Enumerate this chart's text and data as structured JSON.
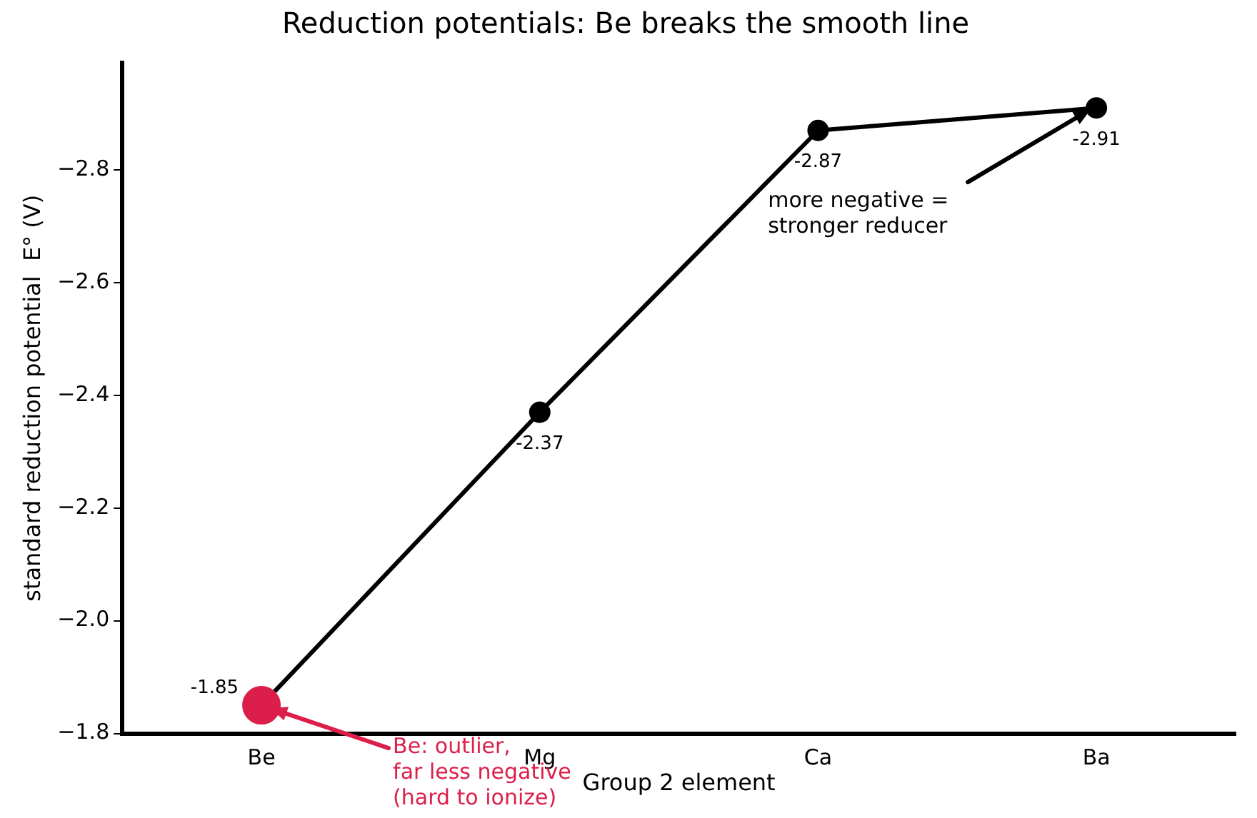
{
  "chart_data": {
    "type": "line",
    "title": "Reduction potentials: Be breaks the smooth line",
    "xlabel": "Group 2 element",
    "ylabel": "standard reduction potential  E° (V)",
    "categories": [
      "Be",
      "Mg",
      "Ca",
      "Ba"
    ],
    "series": [
      {
        "color": "#000000",
        "colors": [
          "#dc1e4a",
          "#000000",
          "#000000",
          "#000000"
        ],
        "values": [
          -1.85,
          -2.37,
          -2.87,
          -2.91
        ]
      }
    ],
    "ylim": [
      -1.8,
      -2.99
    ],
    "yticks": [
      {
        "value": -1.8,
        "label": "−1.8"
      },
      {
        "value": -2.0,
        "label": "−2.0"
      },
      {
        "value": -2.2,
        "label": "−2.2"
      },
      {
        "value": -2.4,
        "label": "−2.4"
      },
      {
        "value": -2.6,
        "label": "−2.6"
      },
      {
        "value": -2.8,
        "label": "−2.8"
      }
    ],
    "grid": false,
    "legend": false,
    "marker": "circle",
    "line_style": "solid",
    "data_labels": true,
    "annotations": [
      {
        "text": "more negative =\nstronger reducer",
        "x": "Ba",
        "y": -2.91
      },
      {
        "text": "Be: outlier,\nfar less negative\n(hard to ionize)",
        "x": "Be",
        "y": -1.85
      }
    ]
  }
}
